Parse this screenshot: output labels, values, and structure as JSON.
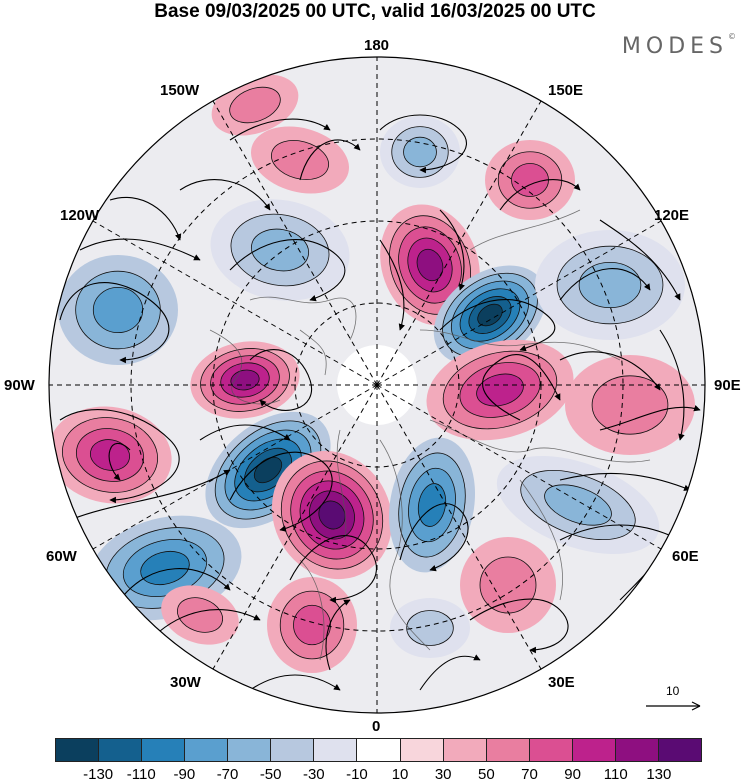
{
  "title": "Base 09/03/2025 00 UTC, valid 16/03/2025 00 UTC",
  "brand": {
    "name": "MODES",
    "mark": "©"
  },
  "longitude_labels": {
    "n180": "180",
    "w150": "150W",
    "e150": "150E",
    "w120": "120W",
    "e120": "120E",
    "w90": "90W",
    "e90": "90E",
    "w60": "60W",
    "e60": "60E",
    "w30": "30W",
    "e30": "30E",
    "s0": "0"
  },
  "reference_vector": {
    "value": "10"
  },
  "colorbar": {
    "colors": [
      "#0b3f5e",
      "#14608e",
      "#2680b8",
      "#5a9fcf",
      "#89b5d8",
      "#b7c8df",
      "#dfe1ee",
      "#ffffff",
      "#f8d6dc",
      "#f2aabb",
      "#e97ea0",
      "#db4f92",
      "#bd228c",
      "#8e0f80",
      "#5a0b73"
    ],
    "tick_labels": [
      "-130",
      "-110",
      "-90",
      "-70",
      "-50",
      "-30",
      "-10",
      "10",
      "30",
      "50",
      "70",
      "90",
      "110",
      "130"
    ]
  }
}
